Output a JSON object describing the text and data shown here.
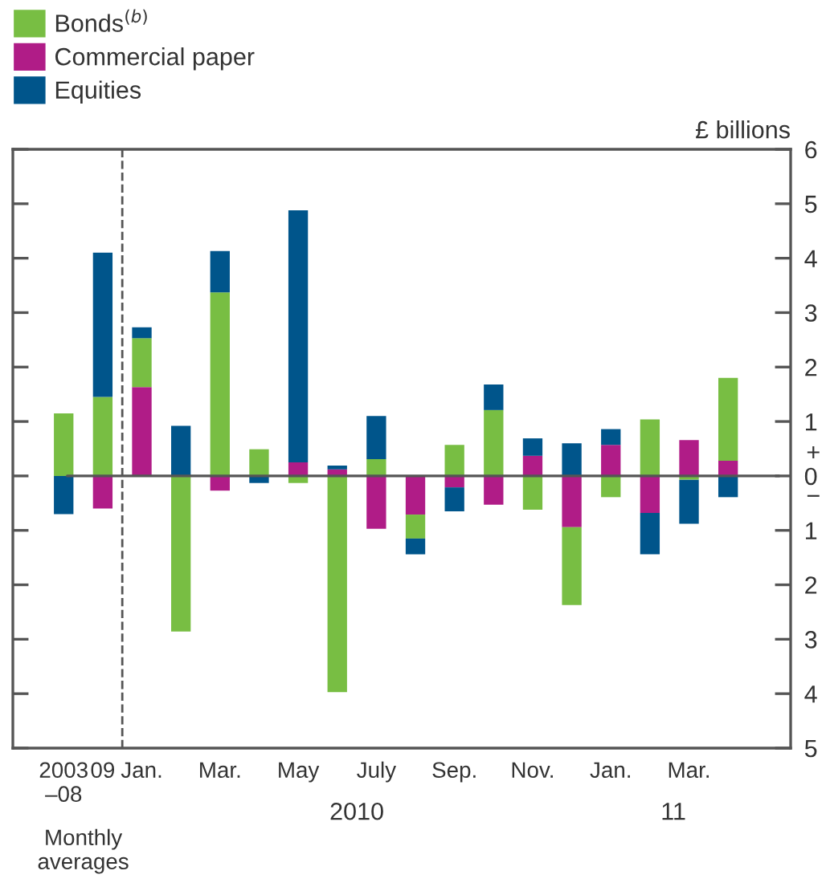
{
  "chart_data": {
    "type": "bar",
    "stacked": true,
    "ylabel": "£ billions",
    "categories": [
      "2003\n–08",
      "09",
      "Jan.",
      null,
      "Mar.",
      null,
      "May",
      null,
      "July",
      null,
      "Sep.",
      null,
      "Nov.",
      null,
      "Jan.",
      null,
      "Mar.",
      null
    ],
    "series": [
      {
        "name": "Commercial paper",
        "color": "#b01c87",
        "values": [
          0,
          -0.6,
          1.63,
          0,
          -0.27,
          0,
          0.25,
          0.12,
          -0.97,
          -0.71,
          -0.21,
          -0.53,
          0.37,
          -0.94,
          0.57,
          -0.68,
          0.66,
          0.28
        ]
      },
      {
        "name": "Bonds$^{(b)}$",
        "color": "#78be43",
        "values": [
          1.15,
          1.45,
          0.9,
          -2.86,
          3.37,
          0.49,
          -0.13,
          -3.97,
          0.31,
          -0.44,
          0.57,
          1.21,
          -0.62,
          -1.43,
          -0.39,
          1.04,
          -0.07,
          1.52
        ]
      },
      {
        "name": "Equities",
        "color": "#00558b",
        "values": [
          -0.7,
          2.65,
          0.2,
          0.92,
          0.76,
          -0.13,
          4.63,
          0.07,
          0.79,
          -0.29,
          -0.44,
          0.47,
          0.32,
          0.6,
          0.29,
          -0.76,
          -0.81,
          -0.39
        ]
      }
    ],
    "ylim": [
      -5,
      6
    ],
    "yticks": [
      {
        "value": -5,
        "label": "5"
      },
      {
        "value": -4,
        "label": "4"
      },
      {
        "value": -3,
        "label": "3"
      },
      {
        "value": -2,
        "label": "2"
      },
      {
        "value": -1,
        "label": "1"
      },
      0,
      1,
      2,
      3,
      4,
      5,
      6
    ],
    "ref_lines": [
      {
        "axis": "x",
        "value": "09",
        "line_style": "dashed",
        "color": "#555555"
      }
    ],
    "annotations": [
      "+",
      "−",
      "Monthly\naverages",
      "2010",
      "11"
    ],
    "legend": "top left",
    "grid": false
  }
}
